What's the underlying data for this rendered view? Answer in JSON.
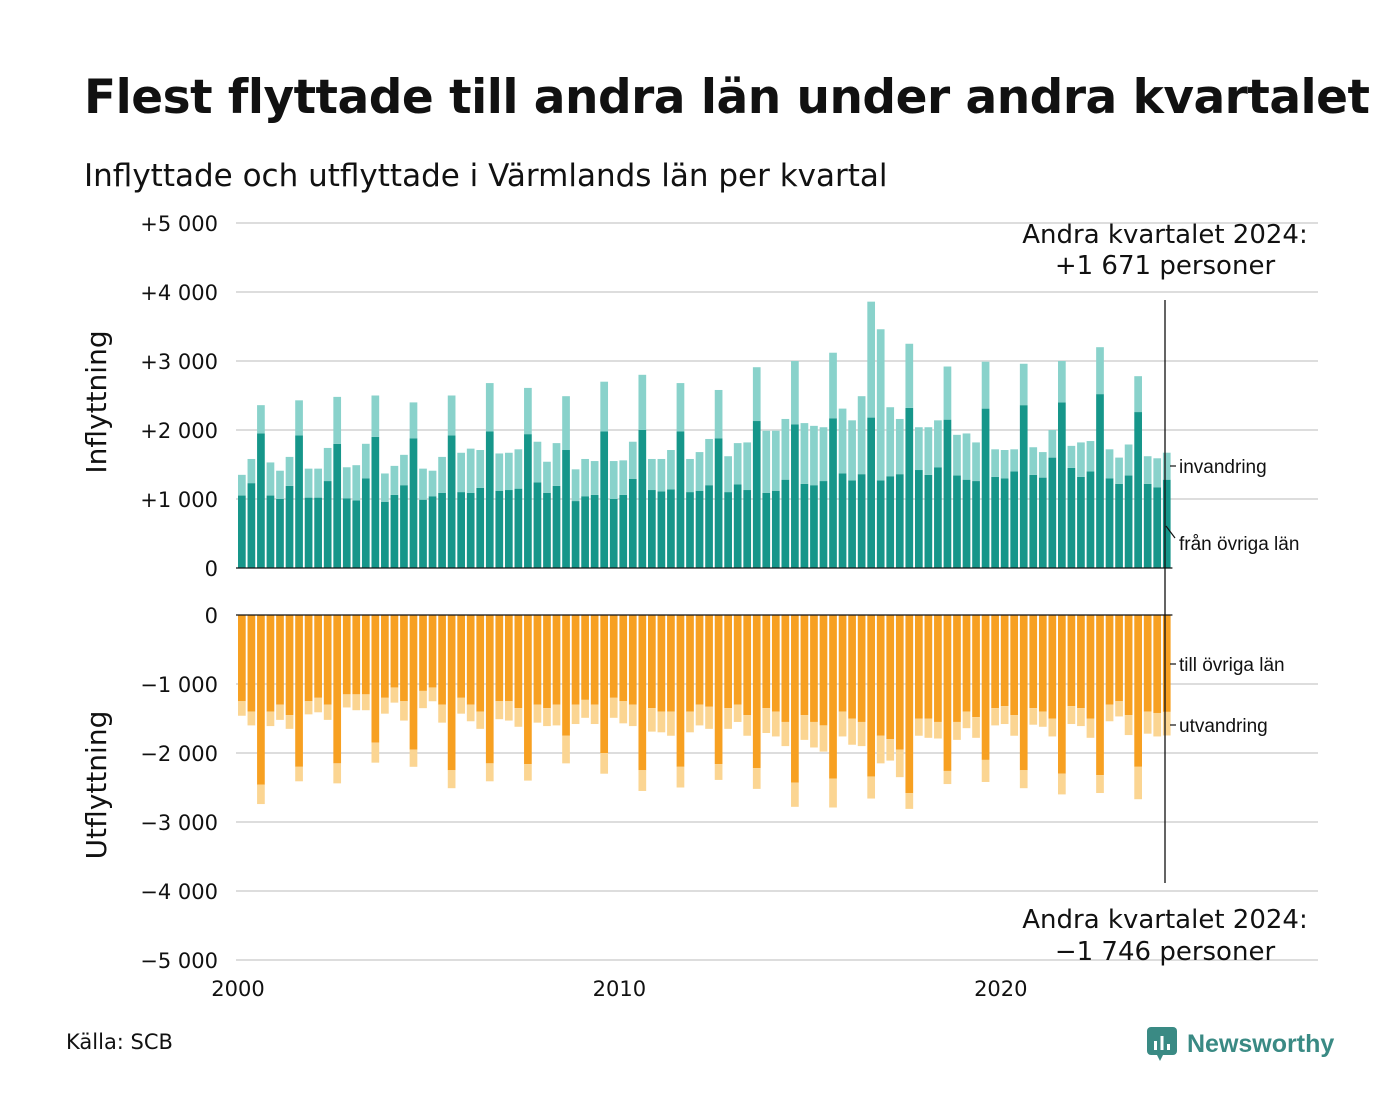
{
  "title": "Flest flyttade till andra län under andra kvartalet",
  "subtitle": "Inflyttade och utflyttade i Värmlands län per kvartal",
  "source": "Källa: SCB",
  "brand": "Newsworthy",
  "colors": {
    "in_domestic": "#16968a",
    "in_immigration": "#89d2cb",
    "out_domestic": "#f7a021",
    "out_emigration": "#fbd592",
    "grid": "#dddddd",
    "brand": "#3a8a84"
  },
  "icons": [
    "newsworthy-logo-icon"
  ],
  "chart_data": {
    "type": "bar",
    "stacked": true,
    "x_ticks": [
      "2000",
      "2010",
      "2020"
    ],
    "y_ticks_in": [
      "+5 000",
      "+4 000",
      "+3 000",
      "+2 000",
      "+1 000",
      "0"
    ],
    "y_ticks_out": [
      "0",
      "−1 000",
      "−2 000",
      "−3 000",
      "−4 000",
      "−5 000"
    ],
    "ylim_in": [
      0,
      5000
    ],
    "ylim_out": [
      -5000,
      0
    ],
    "ylabel_in": "Inflyttning",
    "ylabel_out": "Utflyttning",
    "grid": true,
    "annotation_top_line1": "Andra kvartalet 2024:",
    "annotation_top_line2": "+1 671 personer",
    "annotation_bottom_line1": "Andra kvartalet 2024:",
    "annotation_bottom_line2": "−1 746 personer",
    "legend_invandring": "invandring",
    "legend_fran": "från övriga län",
    "legend_till": "till övriga län",
    "legend_utvandring": "utvandring",
    "start_year": 2000,
    "series_in_domestic": [
      1050,
      1230,
      1950,
      1050,
      1000,
      1190,
      1920,
      1020,
      1020,
      1260,
      1800,
      1010,
      980,
      1300,
      1900,
      960,
      1060,
      1200,
      1880,
      990,
      1040,
      1090,
      1920,
      1100,
      1090,
      1160,
      1980,
      1120,
      1130,
      1150,
      1940,
      1240,
      1090,
      1190,
      1710,
      970,
      1040,
      1060,
      1980,
      1000,
      1060,
      1290,
      2000,
      1130,
      1110,
      1140,
      1980,
      1100,
      1120,
      1200,
      1880,
      1100,
      1210,
      1130,
      2130,
      1090,
      1120,
      1280,
      2080,
      1220,
      1200,
      1260,
      2170,
      1370,
      1270,
      1360,
      2180,
      1270,
      1330,
      1360,
      2320,
      1420,
      1350,
      1460,
      2150,
      1340,
      1280,
      1260,
      2310,
      1320,
      1300,
      1400,
      2360,
      1350,
      1310,
      1600,
      2400,
      1450,
      1320,
      1400,
      2520,
      1300,
      1220,
      1340,
      2260,
      1220,
      1170,
      1280
    ],
    "series_in_immigration": [
      300,
      350,
      410,
      480,
      410,
      420,
      510,
      420,
      420,
      480,
      680,
      450,
      510,
      500,
      600,
      410,
      420,
      440,
      520,
      450,
      370,
      520,
      580,
      570,
      640,
      550,
      700,
      540,
      540,
      570,
      670,
      590,
      450,
      620,
      780,
      460,
      540,
      490,
      720,
      550,
      500,
      540,
      800,
      450,
      470,
      570,
      700,
      480,
      560,
      670,
      700,
      520,
      600,
      690,
      780,
      900,
      870,
      880,
      920,
      880,
      860,
      780,
      950,
      940,
      870,
      1130,
      1680,
      2190,
      1000,
      800,
      930,
      620,
      690,
      680,
      770,
      590,
      670,
      560,
      680,
      400,
      410,
      320,
      600,
      400,
      370,
      400,
      600,
      320,
      500,
      440,
      680,
      420,
      380,
      450,
      520,
      400,
      420,
      391
    ],
    "series_out_domestic": [
      1250,
      1400,
      2460,
      1400,
      1300,
      1450,
      2200,
      1250,
      1200,
      1300,
      2150,
      1150,
      1150,
      1150,
      1850,
      1200,
      1050,
      1250,
      1950,
      1100,
      1050,
      1300,
      2250,
      1200,
      1300,
      1400,
      2150,
      1250,
      1250,
      1350,
      2160,
      1300,
      1350,
      1300,
      1750,
      1300,
      1230,
      1300,
      2000,
      1200,
      1250,
      1300,
      2250,
      1350,
      1400,
      1400,
      2200,
      1400,
      1300,
      1330,
      2160,
      1350,
      1300,
      1450,
      2220,
      1350,
      1400,
      1550,
      2430,
      1450,
      1550,
      1600,
      2370,
      1400,
      1500,
      1550,
      2340,
      1750,
      1800,
      1950,
      2580,
      1500,
      1500,
      1550,
      2260,
      1550,
      1400,
      1480,
      2100,
      1350,
      1320,
      1450,
      2250,
      1350,
      1400,
      1500,
      2300,
      1320,
      1350,
      1500,
      2320,
      1300,
      1250,
      1450,
      2200,
      1400,
      1420,
      1404
    ],
    "series_out_emigration": [
      210,
      200,
      280,
      210,
      220,
      200,
      210,
      190,
      210,
      220,
      290,
      190,
      230,
      230,
      290,
      230,
      220,
      280,
      250,
      250,
      200,
      260,
      260,
      230,
      240,
      250,
      260,
      260,
      280,
      270,
      240,
      260,
      260,
      300,
      400,
      280,
      260,
      280,
      300,
      290,
      320,
      310,
      300,
      340,
      300,
      350,
      300,
      300,
      300,
      320,
      230,
      300,
      250,
      300,
      300,
      360,
      360,
      350,
      350,
      360,
      370,
      380,
      420,
      360,
      380,
      350,
      320,
      400,
      310,
      400,
      230,
      250,
      280,
      240,
      190,
      260,
      240,
      300,
      320,
      250,
      260,
      300,
      260,
      240,
      220,
      260,
      300,
      260,
      260,
      280,
      260,
      240,
      220,
      290,
      470,
      320,
      340,
      342
    ]
  }
}
